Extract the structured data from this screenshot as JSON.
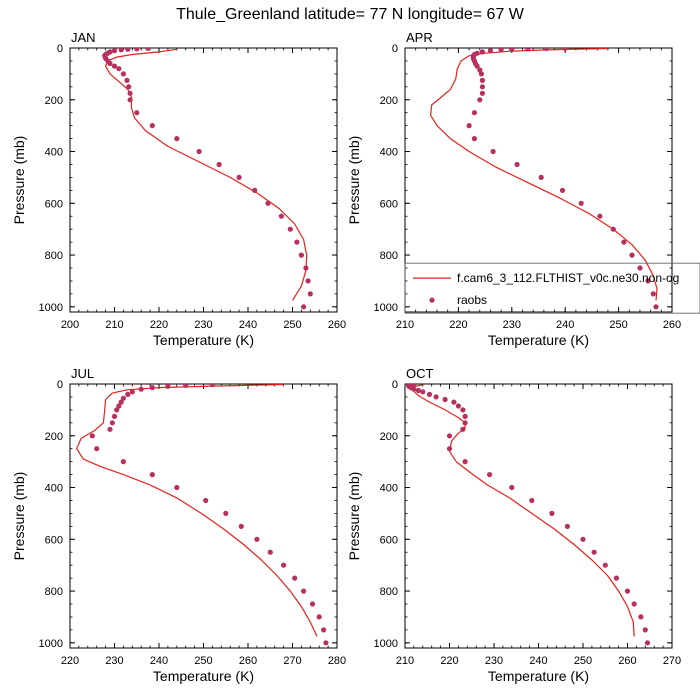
{
  "figure": {
    "title": "Thule_Greenland  latitude= 77 N longitude= 67 W"
  },
  "colors": {
    "model_line": "#e8211b",
    "obs_marker": "#b8305f",
    "axis": "#000000"
  },
  "chart_data": [
    {
      "type": "line",
      "title": "JAN",
      "xlabel": "Temperature (K)",
      "ylabel": "Pressure (mb)",
      "xlim": [
        200,
        260
      ],
      "ylim": [
        1020,
        0
      ],
      "xticks": [
        200,
        210,
        220,
        230,
        240,
        250,
        260
      ],
      "yticks": [
        0,
        200,
        400,
        600,
        800,
        1000
      ],
      "series": [
        {
          "kind": "line",
          "x": [
            250.0,
            252.0,
            253.0,
            253.2,
            252.5,
            250.5,
            247.0,
            242.0,
            236.0,
            229.0,
            222.0,
            217.0,
            214.5,
            213.8,
            213.8,
            213.0,
            211.0,
            209.0,
            208.0,
            208.5,
            210.5,
            214.0,
            220.0,
            224.0
          ],
          "y": [
            975,
            920,
            860,
            800,
            740,
            680,
            620,
            560,
            500,
            440,
            380,
            320,
            270,
            230,
            190,
            160,
            130,
            100,
            70,
            50,
            35,
            25,
            15,
            5
          ]
        },
        {
          "name": "raobs",
          "kind": "points",
          "x": [
            252.5,
            254.0,
            253.5,
            253.0,
            252.0,
            251.0,
            249.5,
            247.5,
            244.5,
            241.5,
            238.0,
            233.5,
            229.0,
            224.0,
            218.5,
            215.0,
            213.5,
            213.5,
            213.2,
            212.8,
            212.0,
            211.0,
            210.0,
            209.0,
            208.5,
            208.0,
            207.8,
            208.0,
            208.5,
            209.0,
            210.0,
            211.5,
            213.0,
            215.0,
            217.5
          ],
          "y": [
            1000,
            950,
            900,
            850,
            800,
            750,
            700,
            650,
            600,
            550,
            500,
            450,
            400,
            350,
            300,
            250,
            200,
            175,
            150,
            125,
            100,
            80,
            70,
            60,
            50,
            40,
            30,
            25,
            20,
            15,
            10,
            7,
            5,
            3,
            1
          ]
        }
      ]
    },
    {
      "type": "line",
      "title": "APR",
      "xlabel": "Temperature (K)",
      "ylabel": "Pressure (mb)",
      "xlim": [
        210,
        260
      ],
      "ylim": [
        1020,
        0
      ],
      "xticks": [
        210,
        220,
        230,
        240,
        250,
        260
      ],
      "yticks": [
        0,
        200,
        400,
        600,
        800,
        1000
      ],
      "legend": {
        "position": "lower-right",
        "entries": [
          "f.cam6_3_112.FLTHIST_v0c.ne30.non-og",
          "raobs"
        ]
      },
      "series": [
        {
          "name": "f.cam6_3_112.FLTHIST_v0c.ne30.non-og",
          "kind": "line",
          "x": [
            257.0,
            257.2,
            256.5,
            255.0,
            252.5,
            249.0,
            244.5,
            239.0,
            233.0,
            227.0,
            222.0,
            218.5,
            216.0,
            214.8,
            215.0,
            216.5,
            218.5,
            219.5,
            219.8,
            220.5,
            222.0,
            225.0,
            230.0,
            238.0,
            248.0
          ],
          "y": [
            975,
            930,
            880,
            820,
            760,
            700,
            640,
            580,
            520,
            460,
            400,
            350,
            300,
            260,
            220,
            195,
            160,
            120,
            80,
            50,
            30,
            20,
            12,
            6,
            2
          ]
        },
        {
          "name": "raobs",
          "kind": "points",
          "x": [
            257.0,
            256.5,
            255.5,
            254.0,
            252.5,
            251.0,
            249.0,
            246.5,
            243.0,
            239.5,
            235.5,
            231.0,
            226.5,
            223.0,
            222.0,
            223.0,
            224.0,
            224.5,
            224.5,
            224.5,
            224.3,
            224.0,
            223.5,
            223.2,
            223.0,
            222.8,
            222.8,
            223.0,
            223.5,
            224.5,
            226.0,
            228.0,
            230.0,
            233.0,
            236.5,
            240.0
          ],
          "y": [
            1000,
            950,
            900,
            850,
            800,
            750,
            700,
            650,
            600,
            550,
            500,
            450,
            400,
            350,
            300,
            250,
            200,
            175,
            150,
            125,
            100,
            85,
            70,
            60,
            50,
            40,
            30,
            25,
            20,
            15,
            10,
            7,
            5,
            3,
            2,
            1
          ]
        }
      ]
    },
    {
      "type": "line",
      "title": "JUL",
      "xlabel": "Temperature (K)",
      "ylabel": "Pressure (mb)",
      "xlim": [
        220,
        280
      ],
      "ylim": [
        1020,
        0
      ],
      "xticks": [
        220,
        230,
        240,
        250,
        260,
        270,
        280
      ],
      "yticks": [
        0,
        200,
        400,
        600,
        800,
        1000
      ],
      "series": [
        {
          "kind": "line",
          "x": [
            275.5,
            274.0,
            272.0,
            269.5,
            266.5,
            263.0,
            259.0,
            254.5,
            249.5,
            244.0,
            238.0,
            232.0,
            227.0,
            223.0,
            221.5,
            222.5,
            225.5,
            227.5,
            227.8,
            228.0,
            229.5,
            233.0,
            240.0,
            252.0,
            268.0
          ],
          "y": [
            975,
            920,
            860,
            800,
            740,
            680,
            620,
            560,
            500,
            440,
            390,
            350,
            320,
            290,
            250,
            210,
            180,
            150,
            100,
            60,
            35,
            22,
            14,
            8,
            2
          ]
        },
        {
          "name": "raobs",
          "kind": "points",
          "x": [
            277.5,
            277.0,
            276.0,
            274.5,
            272.5,
            270.5,
            268.0,
            265.0,
            262.0,
            258.5,
            255.0,
            250.5,
            244.0,
            238.5,
            232.0,
            226.0,
            225.0,
            229.0,
            229.5,
            230.0,
            230.5,
            231.0,
            231.5,
            232.0,
            233.0,
            234.0,
            236.0,
            238.5,
            242.0,
            246.0,
            252.0
          ],
          "y": [
            1000,
            950,
            900,
            850,
            800,
            750,
            700,
            650,
            600,
            550,
            500,
            450,
            400,
            350,
            300,
            250,
            200,
            175,
            150,
            125,
            100,
            85,
            70,
            55,
            40,
            30,
            20,
            14,
            9,
            5,
            2
          ]
        }
      ]
    },
    {
      "type": "line",
      "title": "OCT",
      "xlabel": "Temperature (K)",
      "ylabel": "Pressure (mb)",
      "xlim": [
        210,
        270
      ],
      "ylim": [
        1020,
        0
      ],
      "xticks": [
        210,
        220,
        230,
        240,
        250,
        260,
        270
      ],
      "yticks": [
        0,
        200,
        400,
        600,
        800,
        1000
      ],
      "series": [
        {
          "kind": "line",
          "x": [
            261.5,
            261.3,
            260.0,
            258.0,
            255.5,
            252.0,
            248.0,
            243.5,
            238.5,
            233.5,
            228.5,
            224.5,
            221.5,
            220.0,
            220.5,
            222.0,
            223.5,
            223.5,
            222.0,
            219.0,
            215.5,
            213.0,
            211.8,
            211.5,
            214.0
          ],
          "y": [
            975,
            920,
            860,
            800,
            740,
            680,
            620,
            560,
            500,
            440,
            390,
            340,
            300,
            260,
            220,
            190,
            170,
            150,
            130,
            100,
            70,
            45,
            25,
            12,
            3
          ]
        },
        {
          "name": "raobs",
          "kind": "points",
          "x": [
            264.5,
            264.0,
            263.0,
            261.5,
            260.0,
            257.5,
            255.0,
            252.5,
            250.0,
            246.5,
            243.0,
            238.5,
            234.0,
            229.0,
            223.5,
            220.0,
            220.0,
            223.0,
            223.5,
            223.5,
            223.0,
            222.0,
            221.0,
            219.0,
            217.0,
            215.5,
            214.0,
            213.0,
            212.0,
            211.5,
            211.0,
            210.8,
            211.0,
            212.0
          ],
          "y": [
            1000,
            950,
            900,
            850,
            800,
            750,
            700,
            650,
            600,
            550,
            500,
            450,
            400,
            350,
            300,
            250,
            200,
            175,
            150,
            125,
            100,
            85,
            70,
            60,
            50,
            40,
            30,
            25,
            20,
            15,
            10,
            7,
            5,
            3
          ]
        }
      ]
    }
  ]
}
